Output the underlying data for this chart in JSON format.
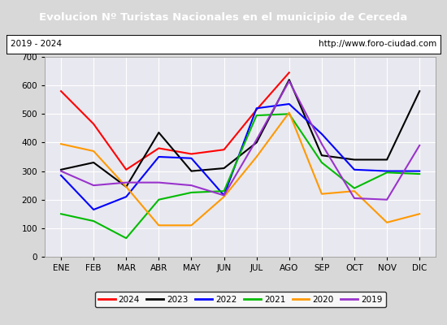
{
  "title": "Evolucion Nº Turistas Nacionales en el municipio de Cerceda",
  "subtitle_left": "2019 - 2024",
  "subtitle_right": "http://www.foro-ciudad.com",
  "title_bg": "#4472c4",
  "title_color": "white",
  "months": [
    "ENE",
    "FEB",
    "MAR",
    "ABR",
    "MAY",
    "JUN",
    "JUL",
    "AGO",
    "SEP",
    "OCT",
    "NOV",
    "DIC"
  ],
  "series": {
    "2024": {
      "color": "#ff0000",
      "values": [
        580,
        465,
        305,
        380,
        360,
        375,
        515,
        645,
        null,
        null,
        null,
        null
      ]
    },
    "2023": {
      "color": "#000000",
      "values": [
        305,
        330,
        245,
        435,
        300,
        310,
        400,
        620,
        355,
        340,
        340,
        580
      ]
    },
    "2022": {
      "color": "#0000ff",
      "values": [
        285,
        165,
        210,
        350,
        345,
        215,
        520,
        535,
        430,
        305,
        300,
        300
      ]
    },
    "2021": {
      "color": "#00bb00",
      "values": [
        150,
        125,
        65,
        200,
        225,
        230,
        495,
        500,
        330,
        240,
        295,
        290
      ]
    },
    "2020": {
      "color": "#ff9900",
      "values": [
        395,
        370,
        245,
        110,
        110,
        210,
        350,
        505,
        220,
        230,
        120,
        150
      ]
    },
    "2019": {
      "color": "#9933cc",
      "values": [
        300,
        250,
        260,
        260,
        250,
        215,
        410,
        615,
        395,
        205,
        200,
        390
      ]
    }
  },
  "ylim": [
    0,
    700
  ],
  "yticks": [
    0,
    100,
    200,
    300,
    400,
    500,
    600,
    700
  ],
  "bg_color": "#d8d8d8",
  "plot_bg": "#e8e8f0",
  "grid_color": "#ffffff",
  "legend_order": [
    "2024",
    "2023",
    "2022",
    "2021",
    "2020",
    "2019"
  ]
}
